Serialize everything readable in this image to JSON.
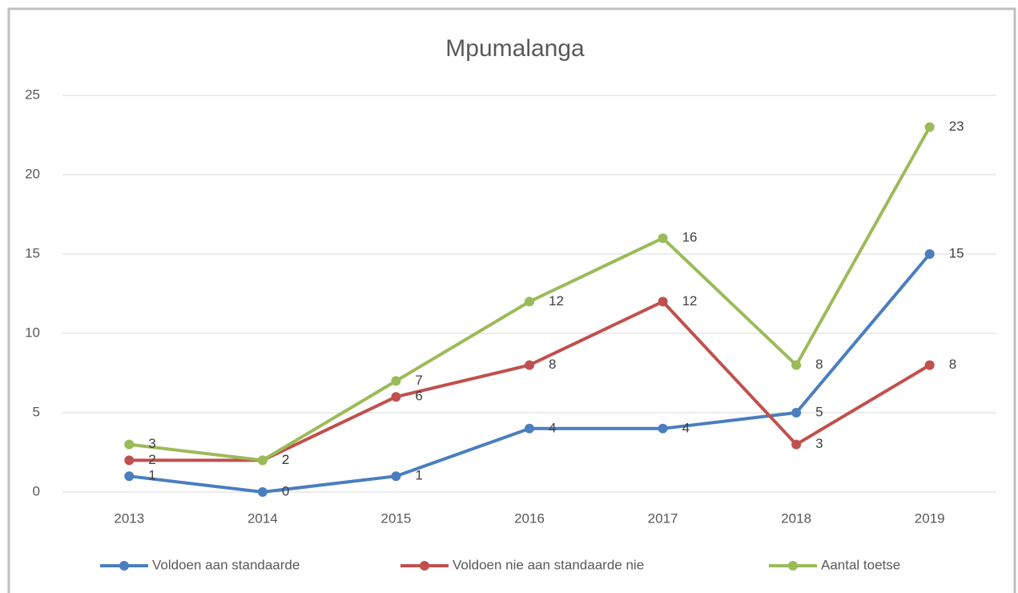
{
  "chart_data": {
    "type": "line",
    "title": "Mpumalanga",
    "categories": [
      "2013",
      "2014",
      "2015",
      "2016",
      "2017",
      "2018",
      "2019"
    ],
    "series": [
      {
        "name": "Voldoen aan standaarde",
        "color": "#4a7ebf",
        "values": [
          1,
          0,
          1,
          4,
          4,
          5,
          15
        ]
      },
      {
        "name": "Voldoen nie aan standaarde nie",
        "color": "#c0504d",
        "values": [
          2,
          2,
          6,
          8,
          12,
          3,
          8
        ]
      },
      {
        "name": "Aantal toetse",
        "color": "#9bbb59",
        "values": [
          3,
          2,
          7,
          12,
          16,
          8,
          23
        ]
      }
    ],
    "ylim": [
      0,
      25
    ],
    "yticks": [
      0,
      5,
      10,
      15,
      20,
      25
    ],
    "grid": true,
    "legend": "bottom",
    "data_labels": true
  }
}
